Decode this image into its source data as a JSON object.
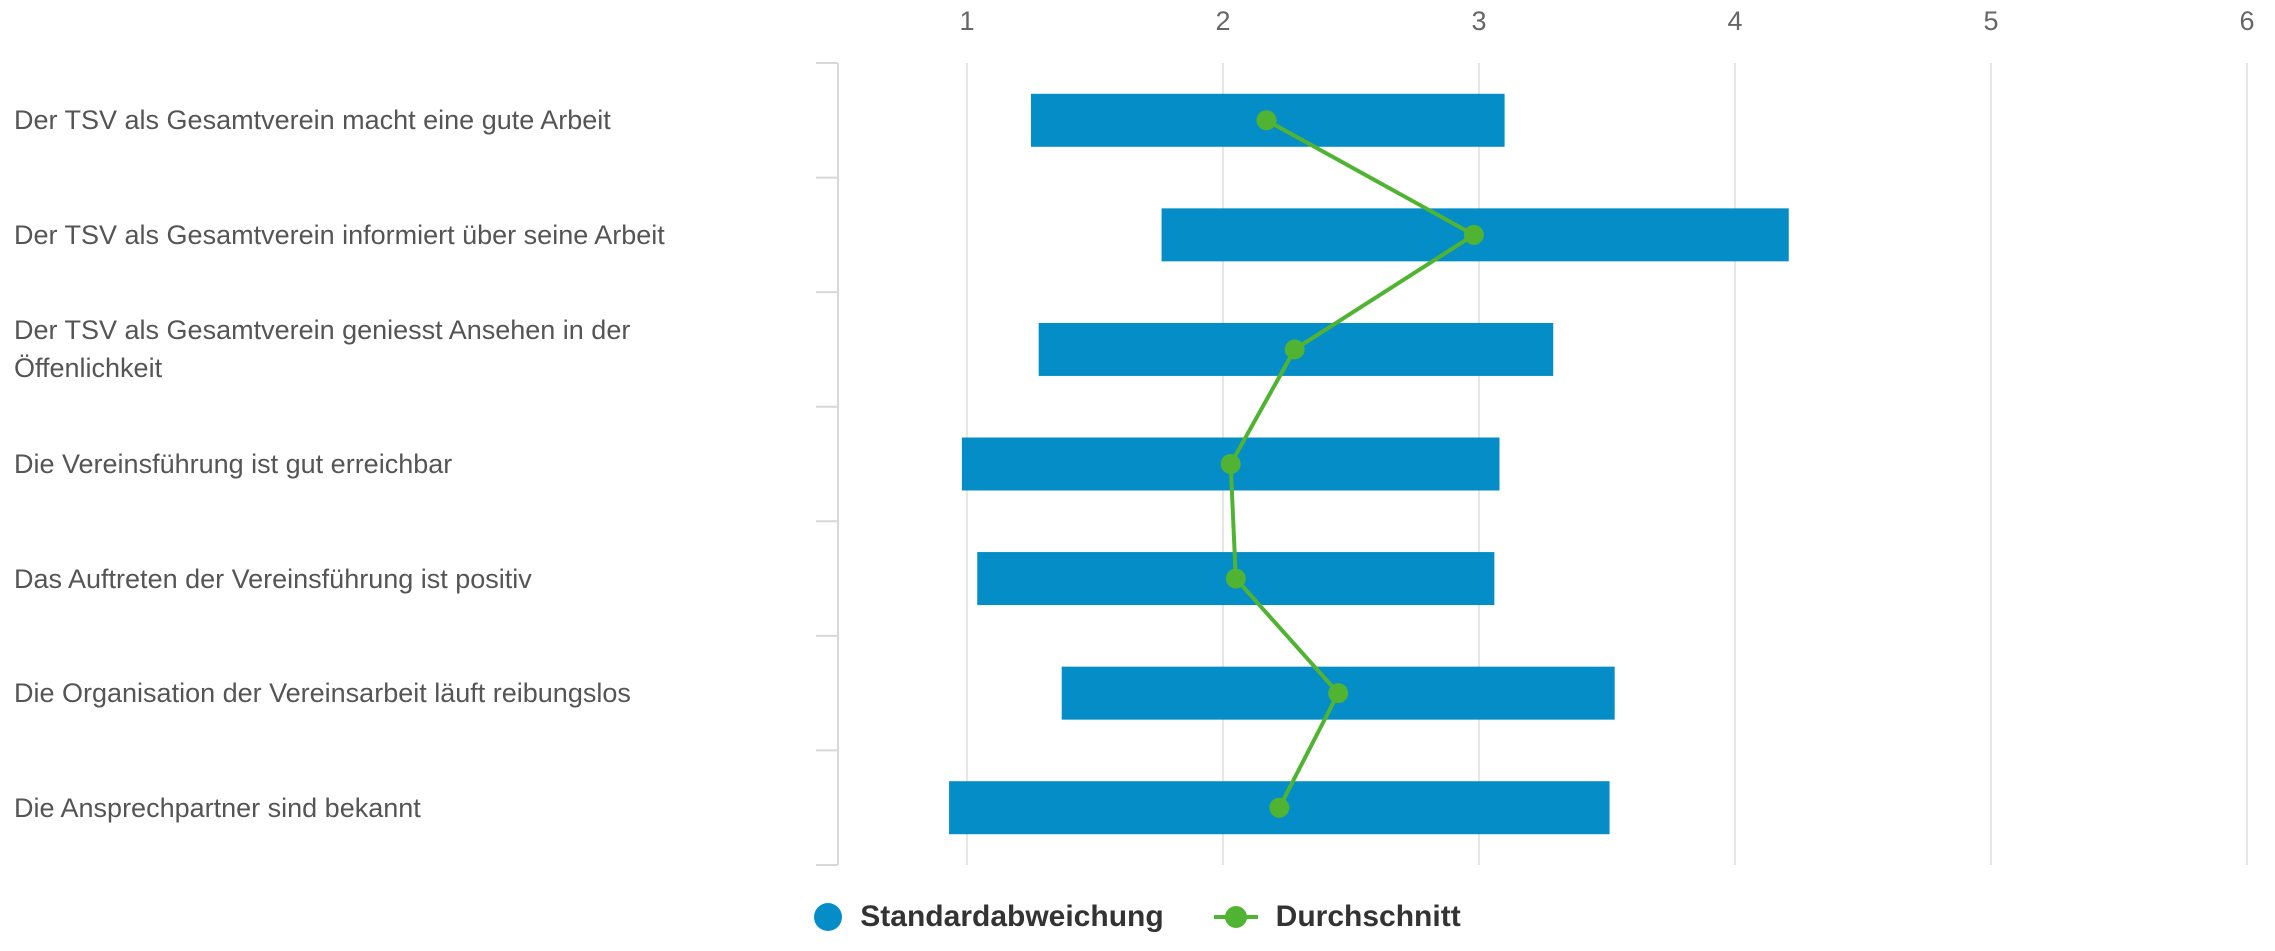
{
  "chart_data": {
    "type": "bar",
    "orientation": "horizontal",
    "categories": [
      "Der TSV als Gesamtverein macht eine gute Arbeit",
      "Der TSV als Gesamtverein informiert über seine Arbeit",
      "Der TSV als Gesamtverein geniesst Ansehen in der Öffenlichkeit",
      "Die Vereinsführung ist gut erreichbar",
      "Das Auftreten der Vereinsführung ist positiv",
      "Die Organisation der Vereinsarbeit läuft reibungslos",
      "Die Ansprechpartner sind bekannt"
    ],
    "xlim": [
      0.5,
      6
    ],
    "xticks": [
      "1",
      "2",
      "3",
      "4",
      "5",
      "6"
    ],
    "tick_values": [
      1,
      2,
      3,
      4,
      5,
      6
    ],
    "grid": true,
    "series": [
      {
        "name": "Standardabweichung",
        "type": "range-bar",
        "color": "#058DC7",
        "ranges": [
          [
            1.25,
            3.1
          ],
          [
            1.76,
            4.21
          ],
          [
            1.28,
            3.29
          ],
          [
            0.98,
            3.08
          ],
          [
            1.04,
            3.06
          ],
          [
            1.37,
            3.53
          ],
          [
            0.93,
            3.51
          ]
        ]
      },
      {
        "name": "Durchschnitt",
        "type": "line",
        "color": "#50B432",
        "values": [
          2.17,
          2.98,
          2.28,
          2.03,
          2.05,
          2.45,
          2.22
        ]
      }
    ],
    "legend_position": "bottom-center"
  }
}
